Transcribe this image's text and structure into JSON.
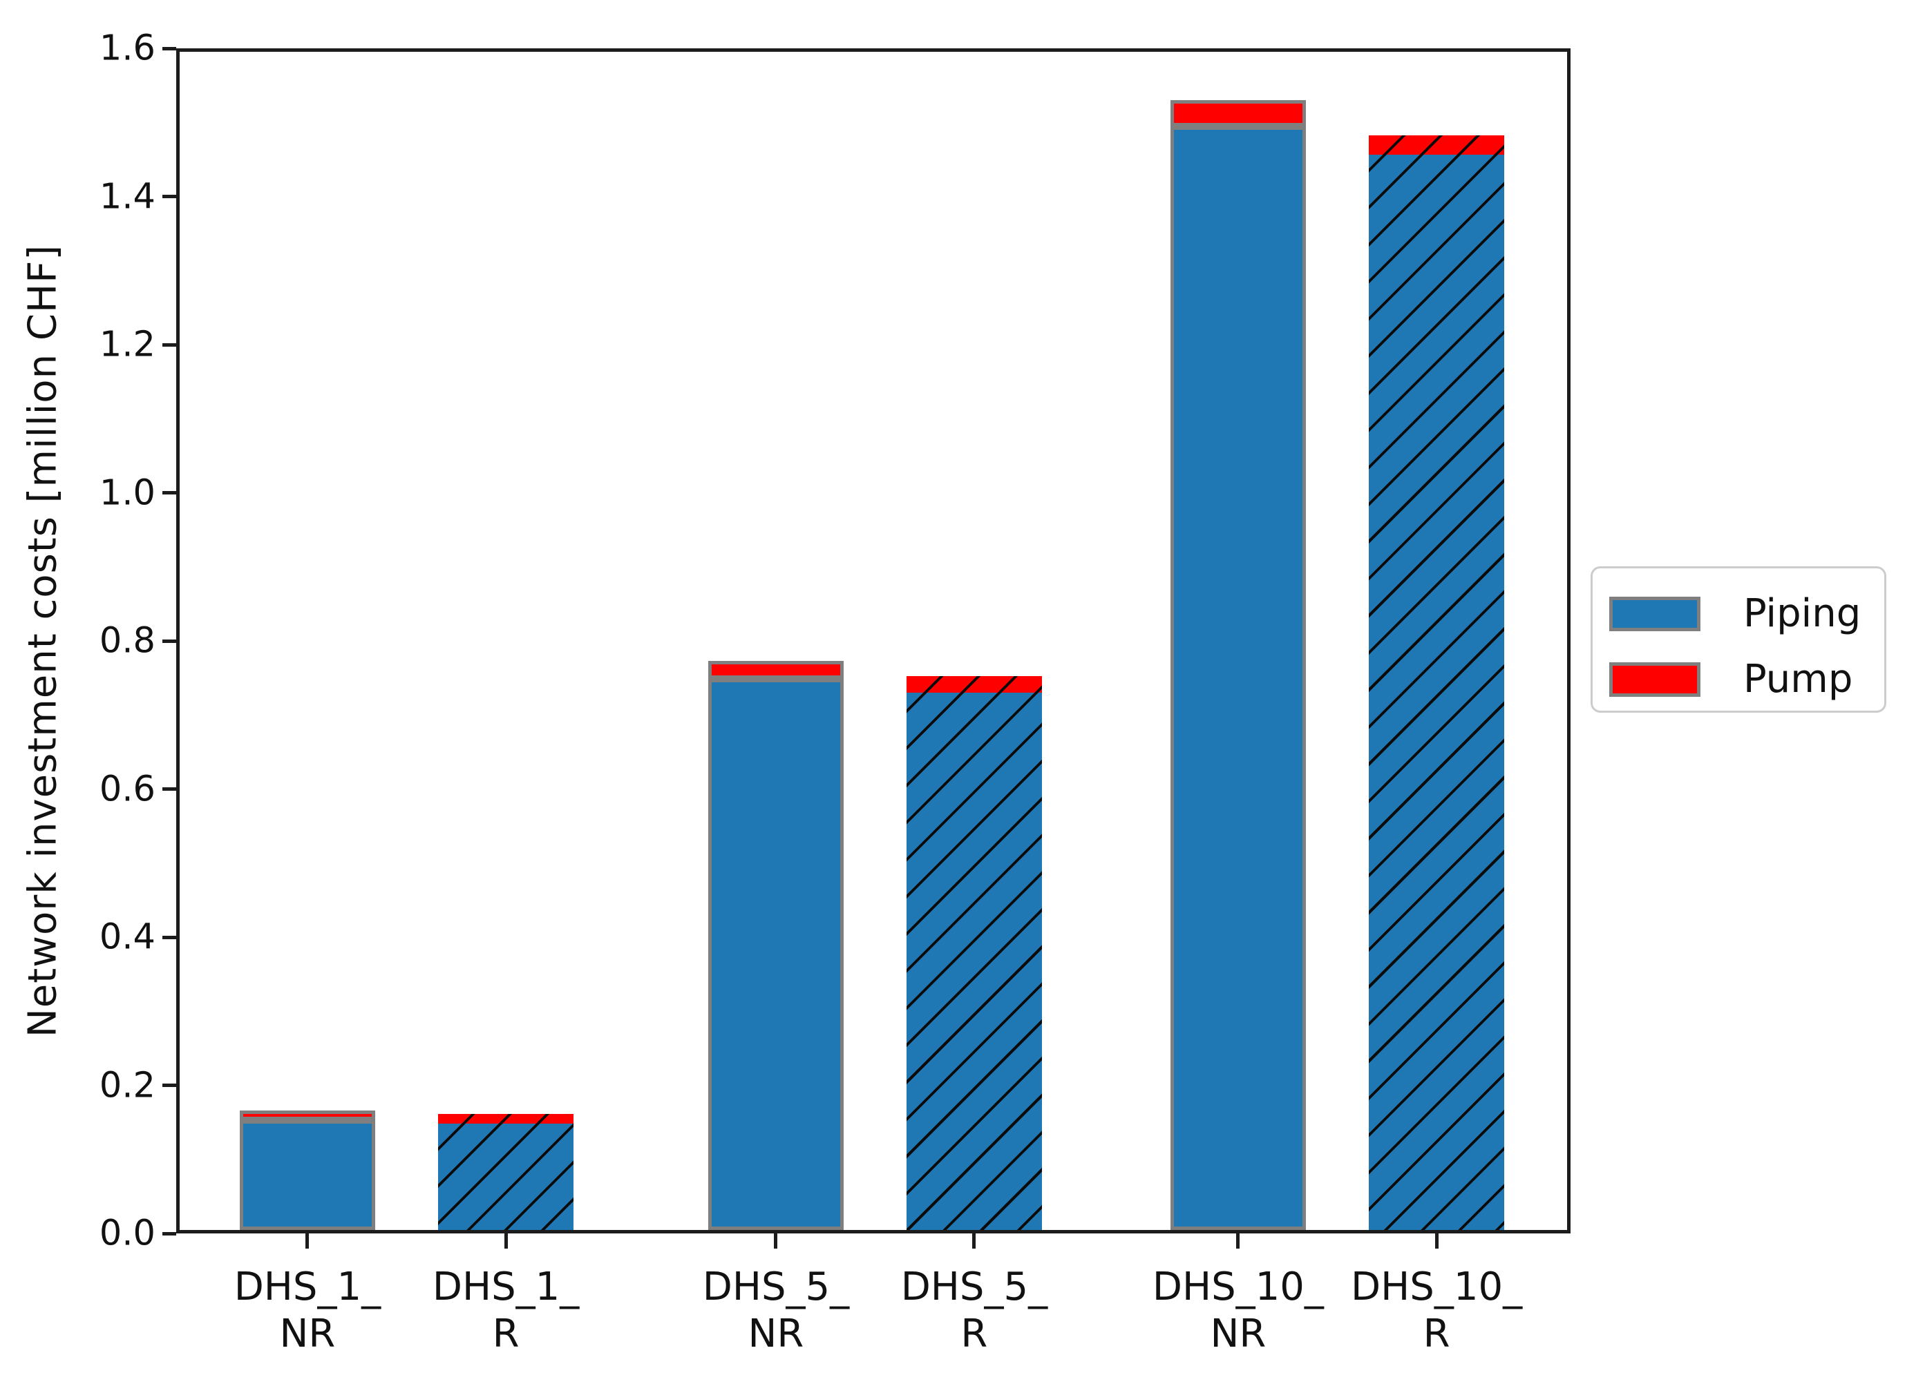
{
  "chart_data": {
    "type": "bar",
    "stacked": true,
    "title": "",
    "xlabel": "",
    "ylabel": "Network investment costs [million CHF]",
    "ylim": [
      0,
      1.6
    ],
    "ytick_step": 0.2,
    "grid": false,
    "legend_position": "right-outside",
    "categories": [
      "DHS_1_\nNR",
      "DHS_1_\nR",
      "DHS_5_\nNR",
      "DHS_5_\nR",
      "DHS_10_\nNR",
      "DHS_10_\nR"
    ],
    "series": [
      {
        "name": "Piping",
        "color": "#1f77b4",
        "values": [
          0.148,
          0.144,
          0.744,
          0.725,
          1.49,
          1.452
        ]
      },
      {
        "name": "Pump",
        "color": "#ff0000",
        "values": [
          0.013,
          0.013,
          0.024,
          0.022,
          0.035,
          0.026
        ]
      }
    ],
    "hatched_bars": [
      false,
      true,
      false,
      true,
      false,
      true
    ],
    "hatch_style": "/",
    "bar_edge_color": "#7f7f7f"
  },
  "legend": {
    "items": [
      {
        "label": "Piping",
        "color": "#1f77b4"
      },
      {
        "label": "Pump",
        "color": "#ff0000"
      }
    ]
  }
}
